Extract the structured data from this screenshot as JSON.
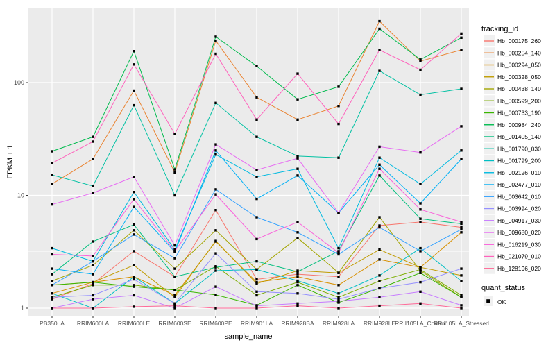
{
  "figure": {
    "background": "#FFFFFF",
    "panel_background": "#EBEBEB",
    "grid_color": "#FFFFFF",
    "axis_text_color": "#4D4D4D",
    "marker_color": "#000000",
    "legend_key_fill": "#F0F0F0"
  },
  "axes": {
    "x_title": "sample_name",
    "y_title": "FPKM + 1",
    "y_tick_labels": [
      "1",
      "10",
      "100"
    ],
    "y_tick_values": [
      1,
      10,
      100
    ]
  },
  "legend": {
    "tracking_title": "tracking_id",
    "quant_title": "quant_status",
    "quant_items": [
      {
        "label": "OK"
      }
    ]
  },
  "chart_data": {
    "type": "line",
    "title": "",
    "xlabel": "sample_name",
    "ylabel": "FPKM + 1",
    "y_scale": "log10",
    "ylim": [
      1,
      460
    ],
    "grid": true,
    "legend_position": "right",
    "marker": "black-square",
    "categories": [
      "PB350LA",
      "RRIM600LA",
      "RRIM600LE",
      "RRIM600SE",
      "RRIM600PE",
      "RRIM901LA",
      "RRIM928BA",
      "RRIM928LA",
      "RRIM928LE",
      "RRII105LA_Control",
      "RRII105LA_Stressed"
    ],
    "series": [
      {
        "name": "Hb_000175_260",
        "color": "#F8766D",
        "values": [
          1.2,
          1.65,
          3.2,
          1.9,
          7.4,
          1.8,
          2.0,
          1.9,
          5.4,
          5.8,
          5.2
        ]
      },
      {
        "name": "Hb_000254_140",
        "color": "#EA8331",
        "values": [
          12.6,
          21,
          85,
          16,
          235,
          74,
          47,
          62,
          350,
          155,
          195
        ]
      },
      {
        "name": "Hb_000294_050",
        "color": "#D89000",
        "values": [
          1.35,
          1.7,
          1.9,
          1.3,
          3.9,
          1.7,
          1.9,
          1.6,
          2.7,
          2.3,
          4.7
        ]
      },
      {
        "name": "Hb_000328_050",
        "color": "#C09B00",
        "values": [
          1.6,
          1.7,
          2.4,
          1.25,
          3.95,
          1.65,
          2.15,
          2.05,
          3.3,
          2.3,
          1.95
        ]
      },
      {
        "name": "Hb_000438_140",
        "color": "#A3A500",
        "values": [
          1.74,
          2.4,
          4.9,
          2.24,
          4.9,
          2.2,
          4.2,
          2.06,
          6.4,
          2.15,
          1.25
        ]
      },
      {
        "name": "Hb_000599_200",
        "color": "#7CAE00",
        "values": [
          1.25,
          1.6,
          1.6,
          1.45,
          2.35,
          1.3,
          1.7,
          1.25,
          1.74,
          2.2,
          1.3
        ]
      },
      {
        "name": "Hb_000733_190",
        "color": "#39B600",
        "values": [
          1.6,
          1.7,
          1.55,
          1.45,
          1.31,
          1.06,
          1.6,
          1.12,
          1.5,
          2.05,
          1.25
        ]
      },
      {
        "name": "Hb_000984_240",
        "color": "#00BB4E",
        "values": [
          24.6,
          33,
          190,
          17,
          255,
          140,
          71,
          92,
          300,
          160,
          250
        ]
      },
      {
        "name": "Hb_001405_140",
        "color": "#00BF7D",
        "values": [
          2.0,
          3.9,
          5.5,
          1.9,
          2.3,
          2.6,
          2.1,
          3.2,
          15.0,
          6.2,
          5.6
        ]
      },
      {
        "name": "Hb_001790_030",
        "color": "#00C1A3",
        "values": [
          15.2,
          12.1,
          63,
          10,
          66,
          33,
          22.3,
          21.6,
          127,
          78,
          88
        ]
      },
      {
        "name": "Hb_001799_200",
        "color": "#00BFC4",
        "values": [
          1.35,
          1.0,
          1.9,
          1.1,
          2.15,
          2.2,
          1.75,
          1.35,
          1.95,
          3.4,
          1.74
        ]
      },
      {
        "name": "Hb_002126_010",
        "color": "#00BAE0",
        "values": [
          3.4,
          2.6,
          10.7,
          3.3,
          23,
          14.6,
          17.2,
          3.4,
          21.6,
          12.6,
          25
        ]
      },
      {
        "name": "Hb_002477_010",
        "color": "#00B0F6",
        "values": [
          2.24,
          2.0,
          7.9,
          3.15,
          25,
          9.3,
          15.0,
          7.0,
          18.7,
          8.5,
          21
        ]
      },
      {
        "name": "Hb_003642_010",
        "color": "#35A2FF",
        "values": [
          1.6,
          2.6,
          4.5,
          2.77,
          11.3,
          6.4,
          4.7,
          3.0,
          5.2,
          3.2,
          5.0
        ]
      },
      {
        "name": "Hb_003994_020",
        "color": "#9590FF",
        "values": [
          1.25,
          1.3,
          1.8,
          1.1,
          3.06,
          1.4,
          1.35,
          1.2,
          1.5,
          1.7,
          2.24
        ]
      },
      {
        "name": "Hb_004917_030",
        "color": "#C77CFF",
        "values": [
          1.0,
          1.2,
          1.3,
          1.0,
          1.55,
          1.05,
          1.1,
          1.15,
          1.25,
          1.4,
          1.06
        ]
      },
      {
        "name": "Hb_009680_020",
        "color": "#E76BF3",
        "values": [
          8.3,
          10.5,
          14.6,
          3.6,
          28.3,
          16.8,
          21.3,
          7.0,
          27,
          24,
          41
        ]
      },
      {
        "name": "Hb_016219_030",
        "color": "#FA62DB",
        "values": [
          3.0,
          2.9,
          9.25,
          3.2,
          10.2,
          4.1,
          5.8,
          3.1,
          17.2,
          7.5,
          5.8
        ]
      },
      {
        "name": "Hb_021079_010",
        "color": "#FF62BC",
        "values": [
          19.3,
          30,
          145,
          35,
          180,
          47,
          120,
          43,
          195,
          130,
          272
        ]
      },
      {
        "name": "Hb_128196_020",
        "color": "#FF6A98",
        "values": [
          1.0,
          1.0,
          1.03,
          1.05,
          1.0,
          1.0,
          1.05,
          1.0,
          1.05,
          1.1,
          1.0
        ]
      }
    ]
  }
}
